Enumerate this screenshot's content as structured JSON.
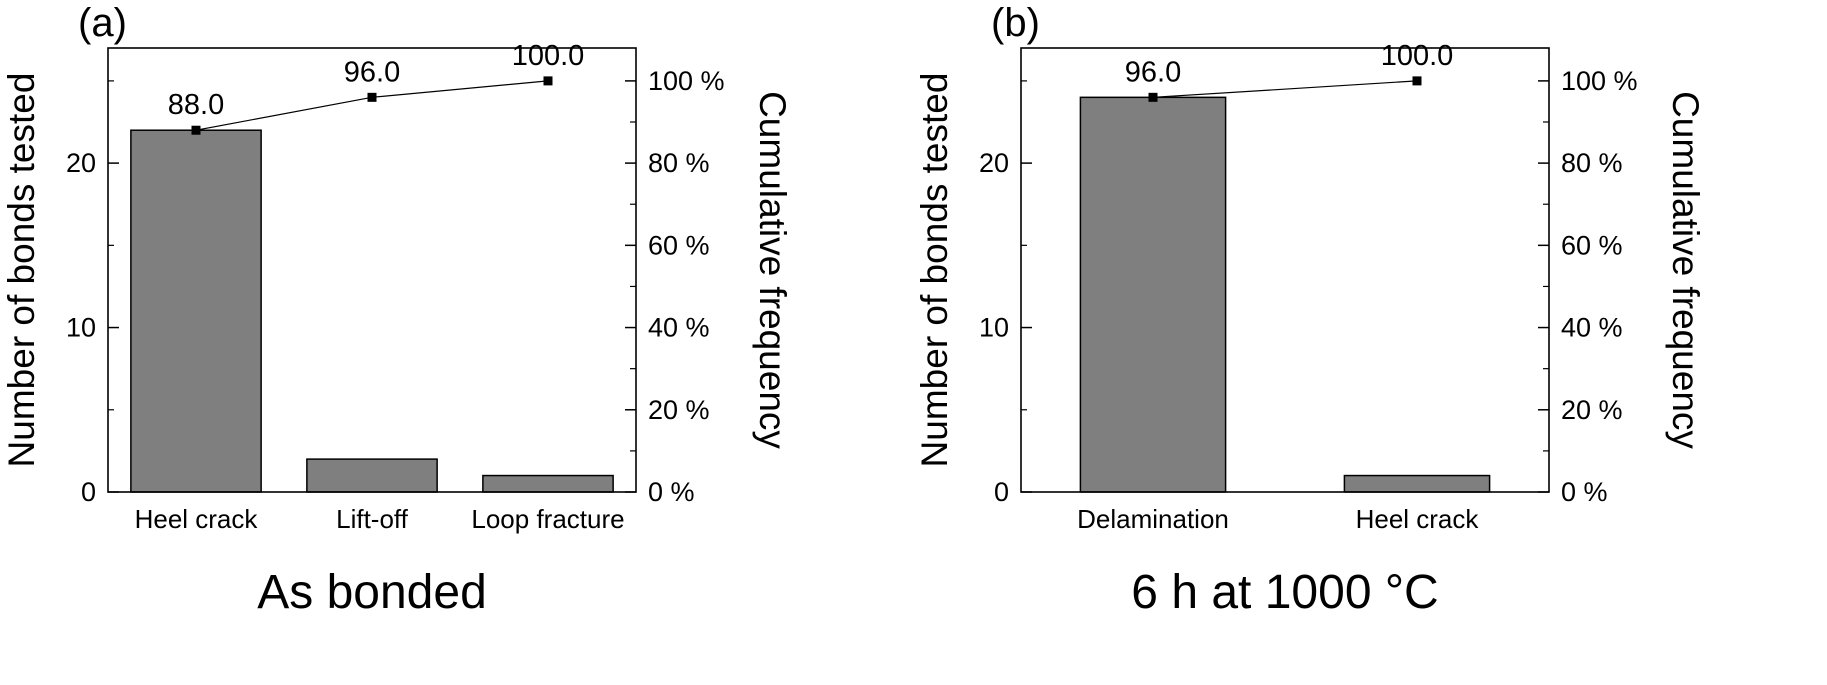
{
  "figure": {
    "background": "#ffffff",
    "panel_count": 2
  },
  "chart_data": [
    {
      "type": "bar",
      "panel_label": "(a)",
      "title": "As bonded",
      "categories": [
        "Heel crack",
        "Lift-off",
        "Loop fracture"
      ],
      "series": [
        {
          "name": "Number of bonds tested",
          "type": "bar",
          "values": [
            22,
            2,
            1
          ]
        },
        {
          "name": "Cumulative frequency",
          "type": "line",
          "values": [
            88.0,
            96.0,
            100.0
          ],
          "point_labels": [
            "88.0",
            "96.0",
            "100.0"
          ]
        }
      ],
      "axes": {
        "left": {
          "label": "Number of bonds tested",
          "min": 0,
          "max": 27,
          "ticks": [
            0,
            10,
            20
          ],
          "minor_ticks": [
            5,
            15,
            25
          ]
        },
        "right": {
          "label": "Cumulative frequency",
          "min": 0,
          "max": 108,
          "tick_values": [
            0,
            20,
            40,
            60,
            80,
            100
          ],
          "tick_labels": [
            "0 %",
            "20 %",
            "40 %",
            "60 %",
            "80 %",
            "100 %"
          ],
          "minor_ticks": [
            10,
            30,
            50,
            70,
            90
          ]
        }
      },
      "layout": {
        "bar_color": "#7f7f7f",
        "bar_edge_color": "#000000",
        "line_color": "#000000",
        "marker": "square",
        "bar_width_frac": 0.74,
        "grid": false,
        "legend": "none"
      }
    },
    {
      "type": "bar",
      "panel_label": "(b)",
      "title": "6 h at 1000 °C",
      "categories": [
        "Delamination",
        "Heel crack"
      ],
      "series": [
        {
          "name": "Number of bonds tested",
          "type": "bar",
          "values": [
            24,
            1
          ]
        },
        {
          "name": "Cumulative frequency",
          "type": "line",
          "values": [
            96.0,
            100.0
          ],
          "point_labels": [
            "96.0",
            "100.0"
          ]
        }
      ],
      "axes": {
        "left": {
          "label": "Number of bonds tested",
          "min": 0,
          "max": 27,
          "ticks": [
            0,
            10,
            20
          ],
          "minor_ticks": [
            5,
            15,
            25
          ]
        },
        "right": {
          "label": "Cumulative frequency",
          "min": 0,
          "max": 108,
          "tick_values": [
            0,
            20,
            40,
            60,
            80,
            100
          ],
          "tick_labels": [
            "0 %",
            "20 %",
            "40 %",
            "60 %",
            "80 %",
            "100 %"
          ],
          "minor_ticks": [
            10,
            30,
            50,
            70,
            90
          ]
        }
      },
      "layout": {
        "bar_color": "#7f7f7f",
        "bar_edge_color": "#000000",
        "line_color": "#000000",
        "marker": "square",
        "bar_width_frac": 0.55,
        "grid": false,
        "legend": "none"
      }
    }
  ]
}
